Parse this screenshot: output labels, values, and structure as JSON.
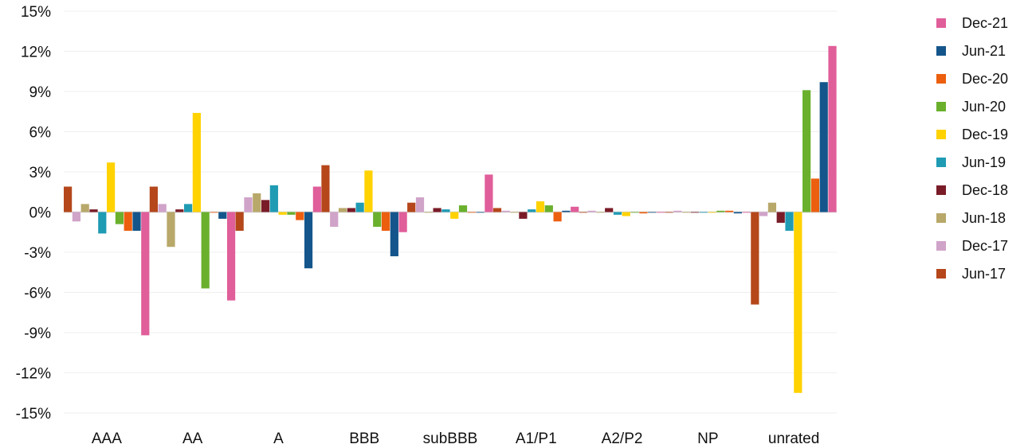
{
  "chart_data": {
    "type": "bar",
    "title": "",
    "xlabel": "",
    "ylabel": "",
    "ylim": [
      -15,
      15
    ],
    "yticks": [
      15,
      12,
      9,
      6,
      3,
      0,
      -3,
      -6,
      -9,
      -12,
      -15
    ],
    "ytick_labels": [
      "15%",
      "12%",
      "9%",
      "6%",
      "3%",
      "0%",
      "-3%",
      "-6%",
      "-9%",
      "-12%",
      "-15%"
    ],
    "grid": true,
    "legend_position": "right",
    "categories": [
      "AAA",
      "AA",
      "A",
      "BBB",
      "subBBB",
      "A1/P1",
      "A2/P2",
      "NP",
      "unrated"
    ],
    "series": [
      {
        "name": "Jun-17",
        "color": "#b5471b",
        "values": [
          1.9,
          1.9,
          -1.4,
          3.5,
          0.7,
          0.3,
          0.0,
          0.0,
          -6.9
        ]
      },
      {
        "name": "Dec-17",
        "color": "#d0a3c9",
        "values": [
          -0.7,
          0.6,
          1.1,
          -1.1,
          1.1,
          0.1,
          0.1,
          0.1,
          -0.3
        ]
      },
      {
        "name": "Jun-18",
        "color": "#b8a86a",
        "values": [
          0.6,
          -2.6,
          1.4,
          0.3,
          0.0,
          0.0,
          0.0,
          0.0,
          0.7
        ]
      },
      {
        "name": "Dec-18",
        "color": "#7a1c28",
        "values": [
          0.2,
          0.2,
          0.9,
          0.3,
          0.3,
          -0.5,
          0.3,
          0.0,
          -0.8
        ]
      },
      {
        "name": "Jun-19",
        "color": "#1f9bb4",
        "values": [
          -1.6,
          0.6,
          2.0,
          0.7,
          0.2,
          0.2,
          -0.2,
          0.0,
          -1.4
        ]
      },
      {
        "name": "Dec-19",
        "color": "#ffd200",
        "values": [
          3.7,
          7.4,
          -0.2,
          3.1,
          -0.5,
          0.8,
          -0.3,
          0.0,
          -13.5
        ]
      },
      {
        "name": "Jun-20",
        "color": "#6ab02c",
        "values": [
          -0.9,
          -5.7,
          -0.2,
          -1.1,
          0.5,
          0.5,
          0.0,
          0.1,
          9.1
        ]
      },
      {
        "name": "Dec-20",
        "color": "#ec5f0f",
        "values": [
          -1.4,
          0.0,
          -0.6,
          -1.4,
          0.0,
          -0.7,
          -0.1,
          0.1,
          2.5
        ]
      },
      {
        "name": "Jun-21",
        "color": "#14568b",
        "values": [
          -1.4,
          -0.5,
          -4.2,
          -3.3,
          0.0,
          0.1,
          0.0,
          -0.1,
          9.7
        ]
      },
      {
        "name": "Dec-21",
        "color": "#e05e9a",
        "values": [
          -9.2,
          -6.6,
          1.9,
          -1.5,
          2.8,
          0.4,
          0.0,
          0.0,
          12.4
        ]
      }
    ]
  }
}
